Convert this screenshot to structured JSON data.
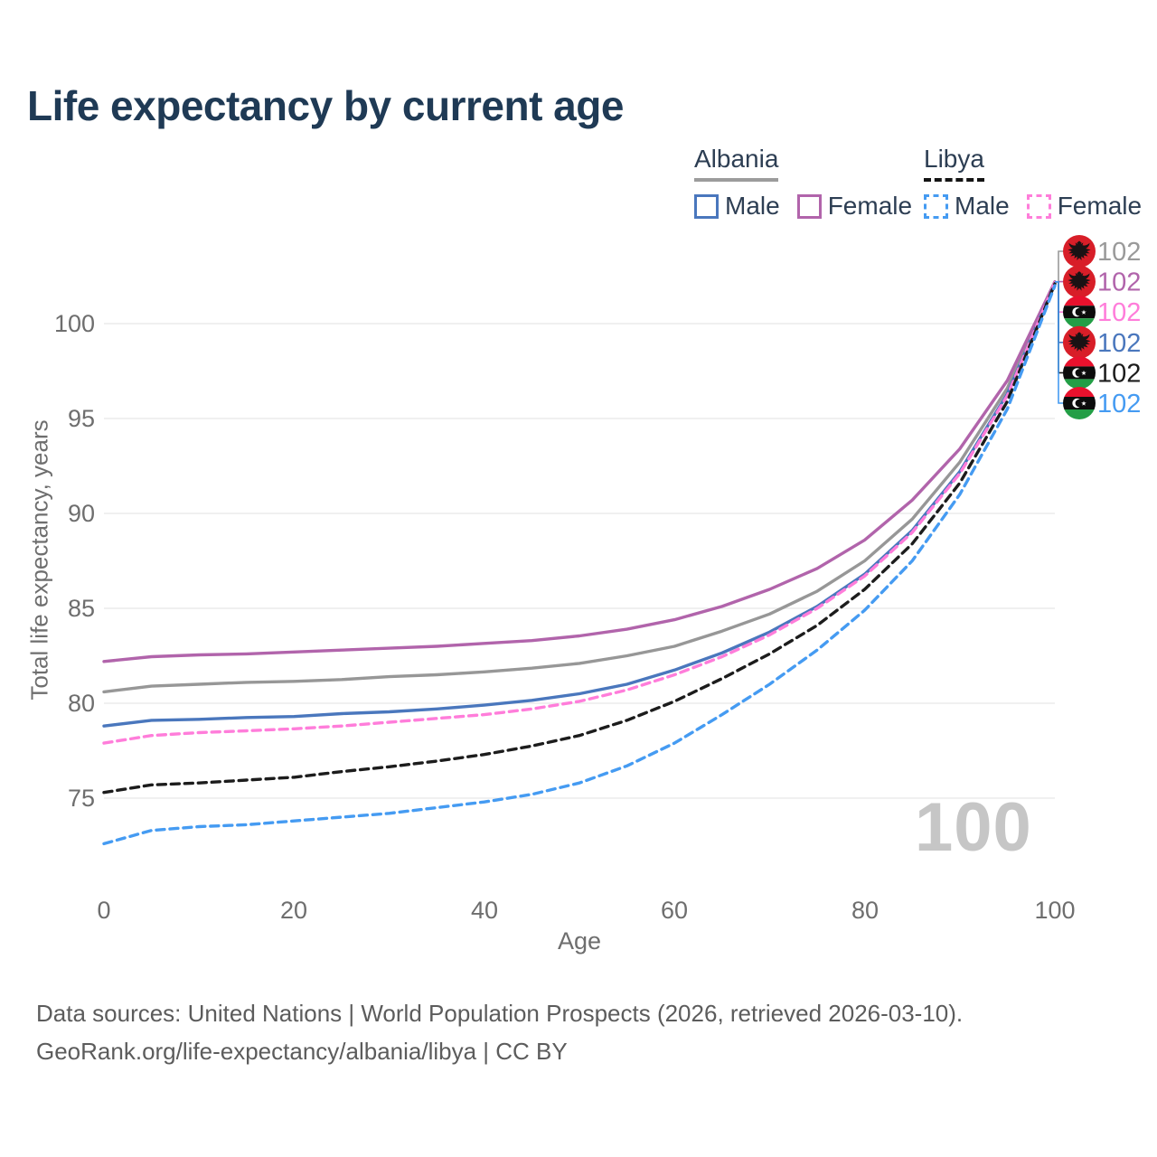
{
  "title": "Life expectancy by current age",
  "legend": {
    "groups": [
      {
        "name": "Albania",
        "underline": {
          "style": "solid",
          "color": "#9c9c9c"
        },
        "items": [
          {
            "label": "Male",
            "color": "#4a77bd",
            "dash": false
          },
          {
            "label": "Female",
            "color": "#b164ab",
            "dash": false
          }
        ]
      },
      {
        "name": "Libya",
        "underline": {
          "style": "dashed",
          "color": "#141414"
        },
        "items": [
          {
            "label": "Male",
            "color": "#459bf2",
            "dash": true
          },
          {
            "label": "Female",
            "color": "#ff7dda",
            "dash": true
          }
        ]
      }
    ]
  },
  "chart_data": {
    "type": "line",
    "xlabel": "Age",
    "ylabel": "Total life expectancy, years",
    "xlim": [
      0,
      100
    ],
    "ylim": [
      71,
      103
    ],
    "x_ticks": [
      0,
      20,
      40,
      60,
      80,
      100
    ],
    "y_ticks": [
      75,
      80,
      85,
      90,
      95,
      100
    ],
    "grid": "horizontal",
    "x": [
      0,
      5,
      10,
      15,
      20,
      25,
      30,
      35,
      40,
      45,
      50,
      55,
      60,
      65,
      70,
      75,
      80,
      85,
      90,
      95,
      100
    ],
    "series": [
      {
        "name": "Albania Total",
        "country": "Albania",
        "color": "#979797",
        "dash": "solid",
        "values": [
          80.6,
          80.9,
          81.0,
          81.1,
          81.15,
          81.25,
          81.4,
          81.5,
          81.65,
          81.85,
          82.1,
          82.5,
          83.0,
          83.8,
          84.7,
          85.9,
          87.5,
          89.7,
          92.7,
          96.6,
          102.2
        ]
      },
      {
        "name": "Albania Female",
        "country": "Albania",
        "color": "#b164ab",
        "dash": "solid",
        "values": [
          82.2,
          82.45,
          82.55,
          82.6,
          82.7,
          82.8,
          82.9,
          83.0,
          83.15,
          83.3,
          83.55,
          83.9,
          84.4,
          85.1,
          86.0,
          87.1,
          88.6,
          90.7,
          93.4,
          97.0,
          102.2
        ]
      },
      {
        "name": "Albania Male",
        "country": "Albania",
        "color": "#4a77bd",
        "dash": "solid",
        "values": [
          78.8,
          79.1,
          79.15,
          79.25,
          79.3,
          79.45,
          79.55,
          79.7,
          79.9,
          80.15,
          80.5,
          81.0,
          81.75,
          82.65,
          83.75,
          85.1,
          86.8,
          89.1,
          92.2,
          96.3,
          102.1
        ]
      },
      {
        "name": "Libya Female",
        "country": "Libya",
        "color": "#ff7dda",
        "dash": "dashed",
        "values": [
          77.9,
          78.3,
          78.45,
          78.55,
          78.65,
          78.8,
          79.0,
          79.2,
          79.4,
          79.7,
          80.1,
          80.7,
          81.5,
          82.45,
          83.6,
          85.0,
          86.7,
          89.0,
          92.1,
          96.2,
          102.15
        ]
      },
      {
        "name": "Libya Total",
        "country": "Libya",
        "color": "#1c1c1c",
        "dash": "dashed",
        "values": [
          75.3,
          75.7,
          75.8,
          75.95,
          76.1,
          76.4,
          76.65,
          76.95,
          77.3,
          77.75,
          78.3,
          79.1,
          80.1,
          81.3,
          82.6,
          84.1,
          86.0,
          88.4,
          91.6,
          95.9,
          102.1
        ]
      },
      {
        "name": "Libya Male",
        "country": "Libya",
        "color": "#459bf2",
        "dash": "dashed",
        "values": [
          72.6,
          73.3,
          73.5,
          73.6,
          73.8,
          74.0,
          74.2,
          74.5,
          74.8,
          75.2,
          75.8,
          76.7,
          77.9,
          79.4,
          81.0,
          82.8,
          84.9,
          87.5,
          91.0,
          95.5,
          102.0
        ]
      }
    ],
    "end_value": 102.2,
    "end_labels": [
      {
        "country": "Albania",
        "flag_icon": "albania-flag-icon",
        "value": "102",
        "color": "#9a9a9a"
      },
      {
        "country": "Albania",
        "flag_icon": "albania-flag-icon",
        "value": "102",
        "color": "#b164ab"
      },
      {
        "country": "Libya",
        "flag_icon": "libya-flag-icon",
        "value": "102",
        "color": "#ff7dda"
      },
      {
        "country": "Albania",
        "flag_icon": "albania-flag-icon",
        "value": "102",
        "color": "#4a77bd"
      },
      {
        "country": "Libya",
        "flag_icon": "libya-flag-icon",
        "value": "102",
        "color": "#1c1c1c"
      },
      {
        "country": "Libya",
        "flag_icon": "libya-flag-icon",
        "value": "102",
        "color": "#459bf2"
      }
    ],
    "watermark": "100"
  },
  "colors": {
    "grid": "#ebebeb",
    "axis_text": "#6e6e6e",
    "title_text": "#1f3a55",
    "legend_text": "#2d3e53",
    "watermark": "#c6c6c6",
    "albania_flag_red": "#d81e28",
    "libya_flag_red": "#e8112d",
    "libya_flag_green": "#239e46"
  },
  "footer": {
    "line1": "Data sources: United Nations | World Population Prospects (2026, retrieved 2026-03-10).",
    "line2": "GeoRank.org/life-expectancy/albania/libya | CC BY"
  }
}
